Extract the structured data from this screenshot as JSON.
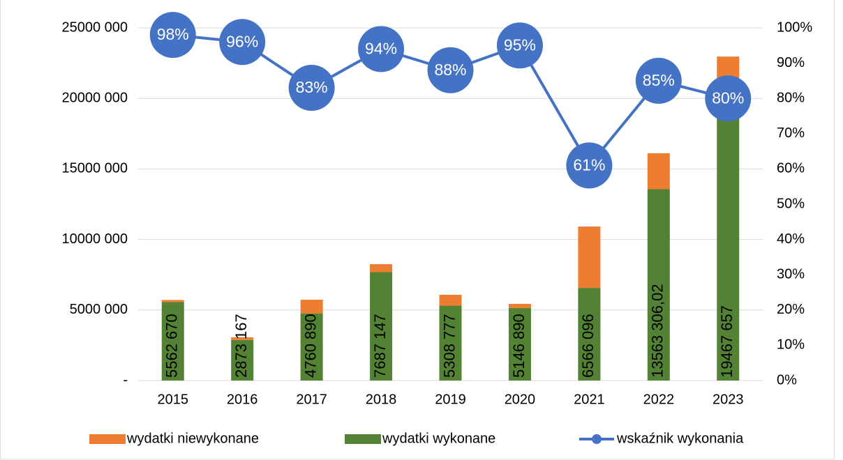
{
  "chart_data": {
    "type": "bar",
    "categories": [
      "2015",
      "2016",
      "2017",
      "2018",
      "2019",
      "2020",
      "2021",
      "2022",
      "2023"
    ],
    "series": [
      {
        "name": "wydatki niewykonane",
        "color": "#ed7d31",
        "stack": "a",
        "values": [
          150000,
          190000,
          970000,
          560000,
          770000,
          290000,
          4350000,
          2550000,
          3500000
        ]
      },
      {
        "name": "wydatki wykonane",
        "color": "#548235",
        "stack": "a",
        "values": [
          5562670,
          2873167,
          4760890,
          7687147,
          5308777,
          5146890,
          6566096,
          13563306.02,
          19467657
        ],
        "value_labels": [
          "5562 670",
          "2873 167",
          "4760 890",
          "7687 147",
          "5308 777",
          "5146 890",
          "6566 096",
          "13563 306,02",
          "19467 657"
        ]
      },
      {
        "name": "wskaźnik wykonania",
        "color": "#4472c4",
        "type": "line",
        "axis": "y2",
        "values": [
          98,
          96,
          83,
          94,
          88,
          95,
          61,
          85,
          80
        ],
        "value_labels": [
          "98%",
          "96%",
          "83%",
          "94%",
          "88%",
          "95%",
          "61%",
          "85%",
          "80%"
        ]
      }
    ],
    "ylim": [
      0,
      25000000
    ],
    "yticks": [
      {
        "value": 0,
        "label": "-"
      },
      {
        "value": 5000000,
        "label": "5000 000"
      },
      {
        "value": 10000000,
        "label": "10000 000"
      },
      {
        "value": 15000000,
        "label": "15000 000"
      },
      {
        "value": 20000000,
        "label": "20000 000"
      },
      {
        "value": 25000000,
        "label": "25000 000"
      }
    ],
    "y2lim": [
      0,
      100
    ],
    "y2ticks": [
      {
        "value": 0,
        "label": "0%"
      },
      {
        "value": 10,
        "label": "10%"
      },
      {
        "value": 20,
        "label": "20%"
      },
      {
        "value": 30,
        "label": "30%"
      },
      {
        "value": 40,
        "label": "40%"
      },
      {
        "value": 50,
        "label": "50%"
      },
      {
        "value": 60,
        "label": "60%"
      },
      {
        "value": 70,
        "label": "70%"
      },
      {
        "value": 80,
        "label": "80%"
      },
      {
        "value": 90,
        "label": "90%"
      },
      {
        "value": 100,
        "label": "100%"
      }
    ],
    "grid": true,
    "legend": "bottom"
  }
}
